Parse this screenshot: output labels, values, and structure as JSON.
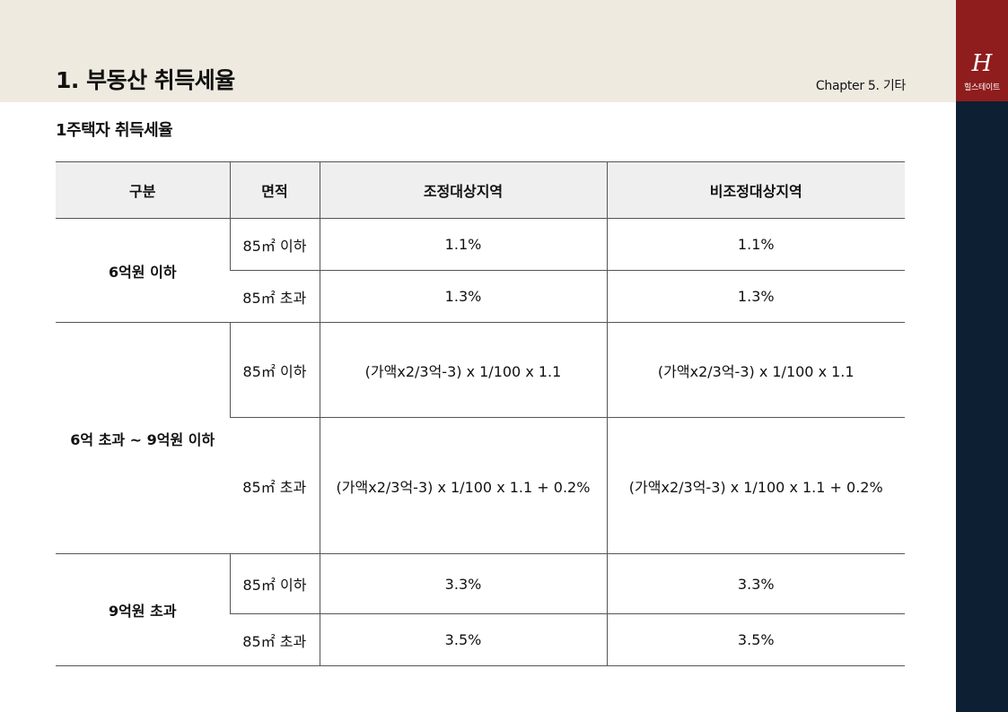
{
  "header": {
    "title": "1. 부동산 취득세율",
    "chapter": "Chapter 5. 기타"
  },
  "brand": {
    "logo": "H",
    "name": "힐스테이트"
  },
  "section": {
    "title": "1주택자 취득세율"
  },
  "table": {
    "headers": [
      "구분",
      "면적",
      "조정대상지역",
      "비조정대상지역"
    ],
    "groups": [
      {
        "label": "6억원 이하",
        "rows": [
          {
            "area": "85㎡ 이하",
            "adjusted": "1.1%",
            "non_adjusted": "1.1%"
          },
          {
            "area": "85㎡ 초과",
            "adjusted": "1.3%",
            "non_adjusted": "1.3%"
          }
        ]
      },
      {
        "label": "6억 초과 ~ 9억원 이하",
        "rows": [
          {
            "area": "85㎡ 이하",
            "adjusted": "(가액x2/3억-3) x 1/100 x 1.1",
            "non_adjusted": "(가액x2/3억-3) x 1/100 x 1.1"
          },
          {
            "area": "85㎡ 초과",
            "adjusted": "(가액x2/3억-3) x 1/100 x 1.1 + 0.2%",
            "non_adjusted": "(가액x2/3억-3) x 1/100 x 1.1 + 0.2%"
          }
        ]
      },
      {
        "label": "9억원 초과",
        "rows": [
          {
            "area": "85㎡ 이하",
            "adjusted": "3.3%",
            "non_adjusted": "3.3%"
          },
          {
            "area": "85㎡ 초과",
            "adjusted": "3.5%",
            "non_adjusted": "3.5%"
          }
        ]
      }
    ]
  }
}
